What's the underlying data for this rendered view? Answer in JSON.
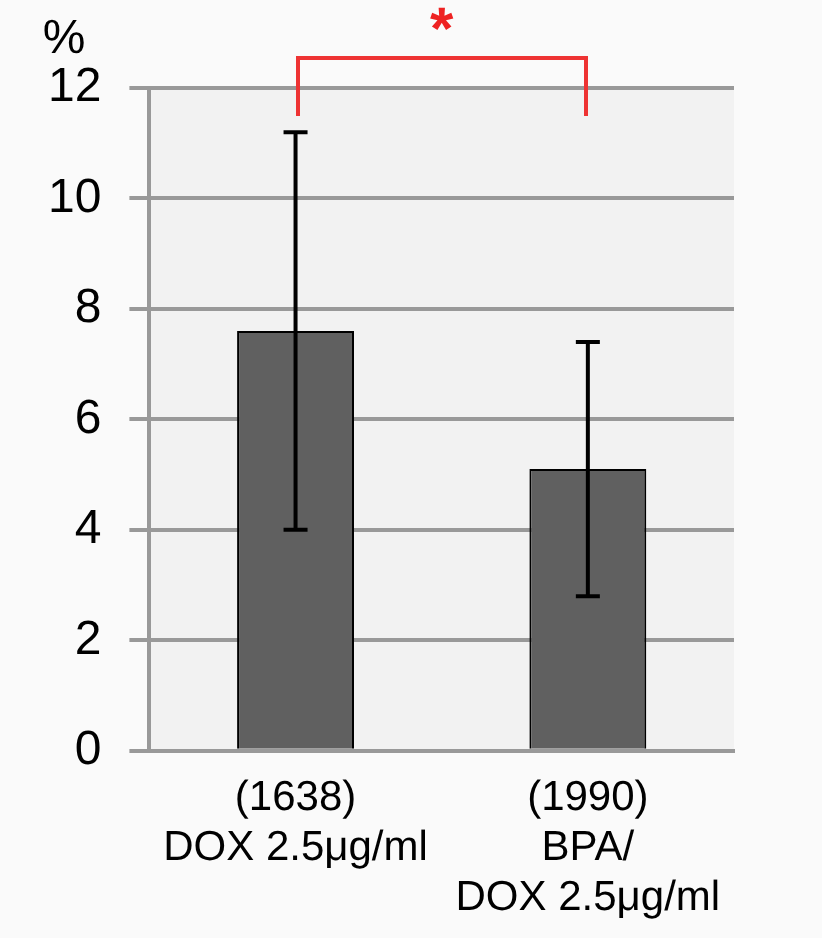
{
  "chart_data": {
    "type": "bar",
    "ylabel": "%",
    "categories": [
      "(1638)\nDOX 2.5μg/ml",
      "(1990)\nBPA/\nDOX 2.5μg/ml"
    ],
    "values": [
      7.6,
      5.1
    ],
    "errors": [
      [
        4.0,
        11.2
      ],
      [
        2.8,
        7.4
      ]
    ],
    "color": "#606060",
    "ylim": [
      0,
      12
    ],
    "yticks": [
      0,
      2,
      4,
      6,
      8,
      10,
      12
    ],
    "grid": "y",
    "legend": false,
    "annotations": [
      "*"
    ]
  }
}
